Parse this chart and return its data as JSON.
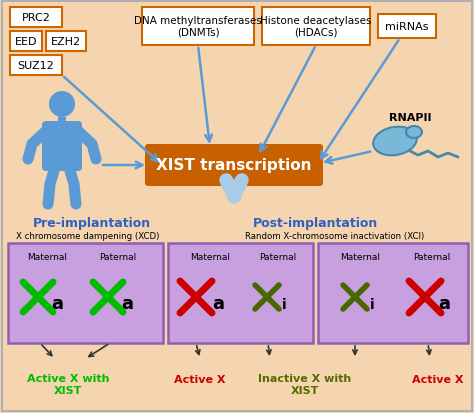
{
  "bg_color": "#f5d5b0",
  "xist_box_color": "#c86000",
  "xist_text": "XIST transcription",
  "box_border_color": "#cc6600",
  "arrow_color": "#5b9bd5",
  "pre_label": "Pre-implantation",
  "post_label": "Post-implantation",
  "xcd_label": "X chromosome dampening (XCD)",
  "xci_label": "Random X-chromosome inactivation (XCI)",
  "purple_box_color": "#c8a0e0",
  "purple_box_border": "#9060b0",
  "label_color_blue": "#3060c0",
  "green_x_color": "#00bb00",
  "red_x_color": "#cc0000",
  "darkgreen_x_color": "#4a6600",
  "human_color": "#5b9bd5",
  "rnapii_color": "#7ab8d8"
}
